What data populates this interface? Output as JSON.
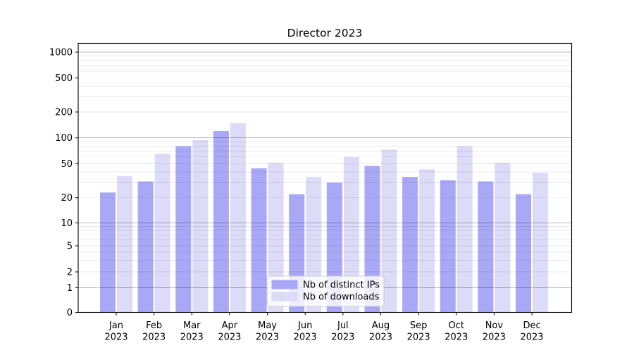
{
  "chart_data": {
    "type": "bar",
    "title": "Director 2023",
    "categories": [
      "Jan",
      "Feb",
      "Mar",
      "Apr",
      "May",
      "Jun",
      "Jul",
      "Aug",
      "Sep",
      "Oct",
      "Nov",
      "Dec"
    ],
    "category_year": "2023",
    "series": [
      {
        "name": "Nb of distinct IPs",
        "color": "#a9a8f6",
        "values": [
          23,
          31,
          80,
          120,
          44,
          22,
          30,
          47,
          35,
          32,
          31,
          22
        ]
      },
      {
        "name": "Nb of downloads",
        "color": "#dcdbf8",
        "values": [
          36,
          65,
          94,
          148,
          51,
          35,
          60,
          73,
          43,
          80,
          51,
          39
        ]
      }
    ],
    "yticks": [
      0,
      1,
      2,
      5,
      10,
      20,
      50,
      100,
      200,
      500,
      1000
    ],
    "xlabel": "",
    "ylabel": "",
    "yscale": "symlog",
    "ylim": [
      0,
      1400
    ],
    "grid": "both",
    "legend_position": "lower center",
    "colors": {
      "background": "#ffffff",
      "spine": "#000000",
      "grid_major_decade": "rgba(0,0,0,0.28)",
      "grid_minor": "rgba(0,0,0,0.09)",
      "legend_background": "rgba(255,255,255,0.8)",
      "legend_border": "#cbcbcb"
    }
  }
}
